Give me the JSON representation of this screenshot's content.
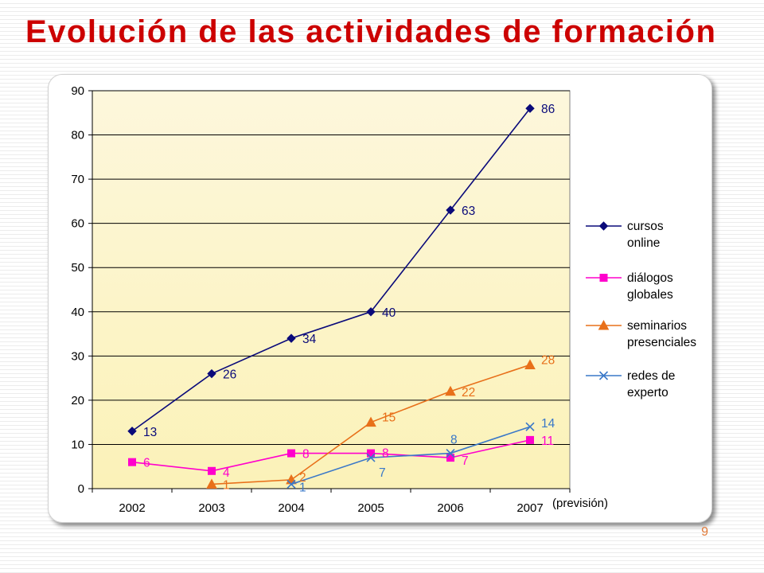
{
  "slide": {
    "title": "Evolución de las actividades de formación",
    "page_number": "9",
    "note": "(previsión)"
  },
  "chart_data": {
    "type": "line",
    "title": "",
    "xlabel": "",
    "ylabel": "",
    "categories": [
      "2002",
      "2003",
      "2004",
      "2005",
      "2006",
      "2007"
    ],
    "ylim": [
      0,
      90
    ],
    "yticks": [
      0,
      10,
      20,
      30,
      40,
      50,
      60,
      70,
      80,
      90
    ],
    "grid": "horizontal",
    "legend_position": "right",
    "series": [
      {
        "name_lines": [
          "cursos",
          "online"
        ],
        "marker": "diamond",
        "color": "#0a0a7a",
        "values": [
          13,
          26,
          34,
          40,
          63,
          86
        ]
      },
      {
        "name_lines": [
          "diálogos",
          "globales"
        ],
        "marker": "square",
        "color": "#ff00cc",
        "values": [
          6,
          4,
          8,
          8,
          7,
          11
        ]
      },
      {
        "name_lines": [
          "seminarios",
          "presenciales"
        ],
        "marker": "triangle",
        "color": "#e8701a",
        "values": [
          null,
          1,
          2,
          15,
          22,
          28
        ]
      },
      {
        "name_lines": [
          "redes de",
          "experto"
        ],
        "marker": "x",
        "color": "#3a78c8",
        "values": [
          null,
          null,
          1,
          7,
          8,
          14
        ]
      }
    ],
    "colors": {
      "plot_background_top": "#fdf7dc",
      "plot_background_bottom": "#fbf2b8"
    }
  }
}
